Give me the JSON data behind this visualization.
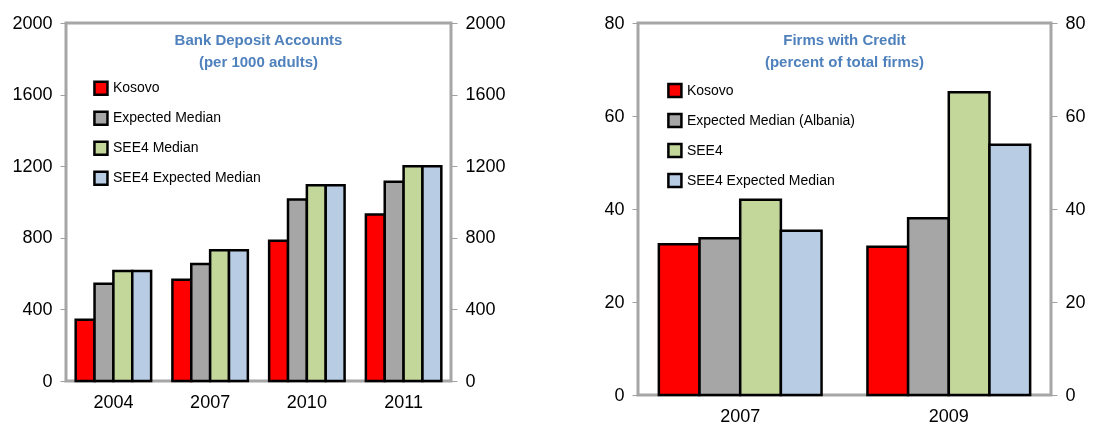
{
  "chart_data": [
    {
      "type": "bar",
      "title": "Bank Deposit Accounts\n(per 1000 adults)",
      "categories": [
        "2004",
        "2007",
        "2010",
        "2011"
      ],
      "series": [
        {
          "name": "Kosovo",
          "color": "#ff0000",
          "values": [
            342,
            566,
            784,
            930
          ]
        },
        {
          "name": "Expected Median",
          "color": "#a6a6a6",
          "values": [
            543,
            653,
            1014,
            1113
          ]
        },
        {
          "name": "SEE4 Median",
          "color": "#c4d79b",
          "values": [
            614,
            730,
            1094,
            1200
          ]
        },
        {
          "name": "SEE4 Expected Median",
          "color": "#b8cce4",
          "values": [
            614,
            730,
            1094,
            1200
          ]
        }
      ],
      "ylim": [
        0,
        2000
      ],
      "yticks": [
        0,
        400,
        800,
        1200,
        1600,
        2000
      ],
      "y2lim": [
        0,
        2000
      ],
      "y2ticks": [
        0,
        400,
        800,
        1200,
        1600,
        2000
      ],
      "legend": "top left"
    },
    {
      "type": "bar",
      "title": "Firms with Credit\n(percent of total firms)",
      "categories": [
        "2007",
        "2009"
      ],
      "series": [
        {
          "name": "Kosovo",
          "color": "#ff0000",
          "values": [
            32.4,
            31.9
          ]
        },
        {
          "name": "Expected Median (Albania)",
          "color": "#a6a6a6",
          "values": [
            33.7,
            38.0
          ]
        },
        {
          "name": "SEE4",
          "color": "#c4d79b",
          "values": [
            42.0,
            65.1
          ]
        },
        {
          "name": "SEE4 Expected Median",
          "color": "#b8cce4",
          "values": [
            35.3,
            53.8
          ]
        }
      ],
      "ylim": [
        0,
        80
      ],
      "yticks": [
        0,
        20,
        40,
        60,
        80
      ],
      "y2lim": [
        0,
        80
      ],
      "y2ticks": [
        0,
        20,
        40,
        60,
        80
      ],
      "legend": "top left"
    }
  ]
}
